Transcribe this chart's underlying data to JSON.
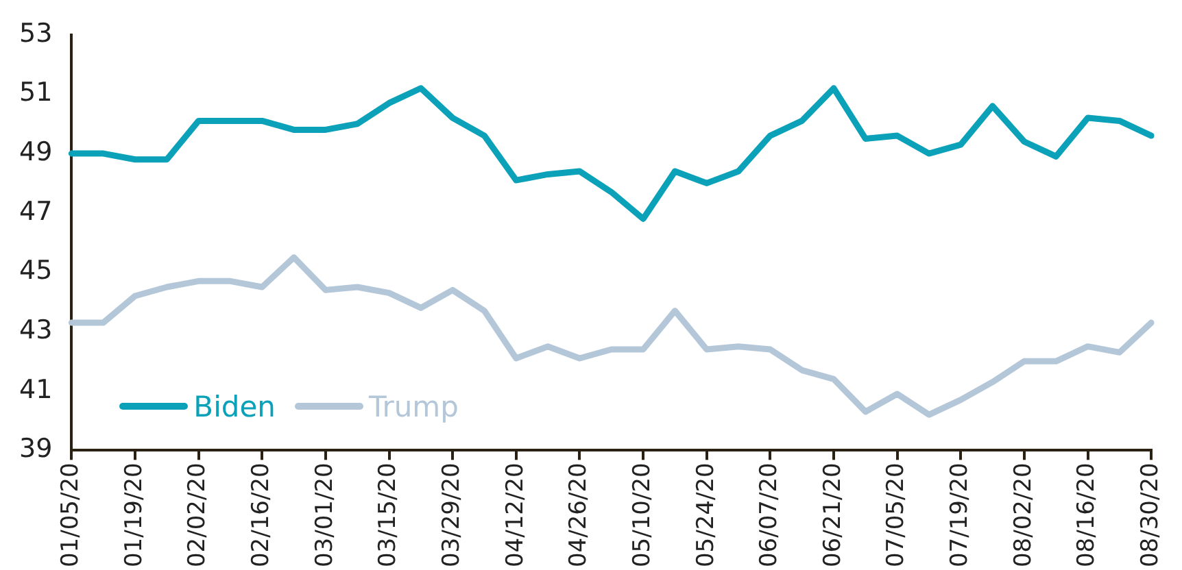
{
  "chart_data": {
    "type": "line",
    "categories": [
      "01/05/20",
      null,
      "01/19/20",
      null,
      "02/02/20",
      null,
      "02/16/20",
      null,
      "03/01/20",
      null,
      "03/15/20",
      null,
      "03/29/20",
      null,
      "04/12/20",
      null,
      "04/26/20",
      null,
      "05/10/20",
      null,
      "05/24/20",
      null,
      "06/07/20",
      null,
      "06/21/20",
      null,
      "07/05/20",
      null,
      "07/19/20",
      null,
      "08/02/20",
      null,
      "08/16/20",
      null,
      "08/30/20"
    ],
    "series": [
      {
        "name": "Biden",
        "color": "#0aa1b9",
        "values": [
          49,
          49,
          48.8,
          48.8,
          50.1,
          50.1,
          50.1,
          49.8,
          49.8,
          50,
          50.7,
          51.2,
          50.2,
          49.6,
          48.1,
          48.3,
          48.4,
          47.7,
          46.8,
          48.4,
          48,
          48.4,
          49.6,
          50.1,
          51.2,
          49.5,
          49.6,
          49,
          49.3,
          50.6,
          49.4,
          48.9,
          50.2,
          50.1,
          49.6
        ]
      },
      {
        "name": "Trump",
        "color": "#b4c7d9",
        "values": [
          43.3,
          43.3,
          44.2,
          44.5,
          44.7,
          44.7,
          44.5,
          45.5,
          44.4,
          44.5,
          44.3,
          43.8,
          44.4,
          43.7,
          42.1,
          42.5,
          42.1,
          42.4,
          42.4,
          43.7,
          42.4,
          42.5,
          42.4,
          41.7,
          41.4,
          40.3,
          40.9,
          40.2,
          40.7,
          41.3,
          42,
          42,
          42.5,
          42.3,
          43.3
        ]
      }
    ],
    "ylim": [
      39,
      53
    ],
    "yticks": [
      39,
      41,
      43,
      45,
      47,
      49,
      51,
      53
    ],
    "grid": false,
    "legend": "bottom left",
    "marker": "none",
    "line_style": "solid"
  }
}
